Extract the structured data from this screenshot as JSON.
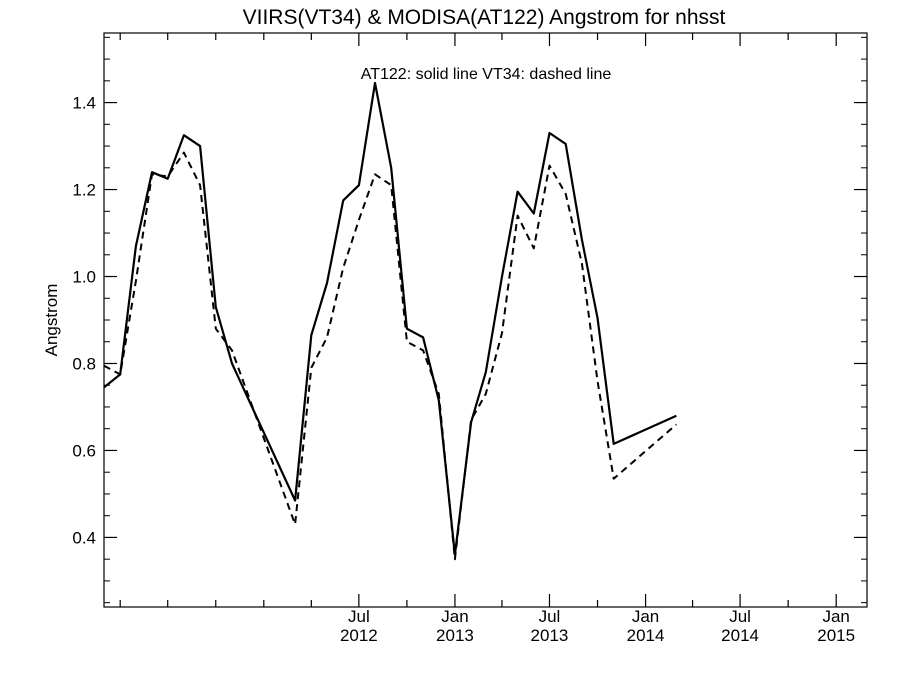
{
  "chart_data": {
    "type": "line",
    "title": "VIIRS(VT34) & MODISA(AT122)  Angstrom for nhsst",
    "ylabel": "Angstrom",
    "xlabel": "",
    "annotation": "AT122: solid line   VT34: dashed line",
    "ylim": [
      0.24,
      1.56
    ],
    "xlim": [
      "2011-03-01",
      "2015-03-01"
    ],
    "yticks": [
      {
        "value": 0.4,
        "label": "0.4"
      },
      {
        "value": 0.6,
        "label": "0.6"
      },
      {
        "value": 0.8,
        "label": "0.8"
      },
      {
        "value": 1.0,
        "label": "1.0"
      },
      {
        "value": 1.2,
        "label": "1.2"
      },
      {
        "value": 1.4,
        "label": "1.4"
      }
    ],
    "xticks": [
      {
        "date": "2012-07-01",
        "month": "Jul",
        "year": "2012"
      },
      {
        "date": "2013-01-01",
        "month": "Jan",
        "year": "2013"
      },
      {
        "date": "2013-07-01",
        "month": "Jul",
        "year": "2013"
      },
      {
        "date": "2014-01-01",
        "month": "Jan",
        "year": "2014"
      },
      {
        "date": "2014-07-01",
        "month": "Jul",
        "year": "2014"
      },
      {
        "date": "2015-01-01",
        "month": "Jan",
        "year": "2015"
      }
    ],
    "grid": false,
    "series": [
      {
        "name": "AT122",
        "style": "solid",
        "points": [
          [
            "2011-03-01",
            0.745
          ],
          [
            "2011-04-01",
            0.775
          ],
          [
            "2011-05-01",
            1.07
          ],
          [
            "2011-06-01",
            1.24
          ],
          [
            "2011-07-01",
            1.225
          ],
          [
            "2011-08-01",
            1.325
          ],
          [
            "2011-09-01",
            1.3
          ],
          [
            "2011-10-01",
            0.93
          ],
          [
            "2011-11-01",
            0.8
          ],
          [
            "2012-03-01",
            0.485
          ],
          [
            "2012-04-01",
            0.865
          ],
          [
            "2012-05-01",
            0.985
          ],
          [
            "2012-06-01",
            1.175
          ],
          [
            "2012-07-01",
            1.21
          ],
          [
            "2012-08-01",
            1.445
          ],
          [
            "2012-09-01",
            1.25
          ],
          [
            "2012-10-01",
            0.88
          ],
          [
            "2012-11-01",
            0.86
          ],
          [
            "2012-12-01",
            0.715
          ],
          [
            "2013-01-01",
            0.36
          ],
          [
            "2013-02-01",
            0.665
          ],
          [
            "2013-03-01",
            0.78
          ],
          [
            "2013-04-01",
            1.0
          ],
          [
            "2013-05-01",
            1.195
          ],
          [
            "2013-06-01",
            1.145
          ],
          [
            "2013-07-01",
            1.33
          ],
          [
            "2013-08-01",
            1.305
          ],
          [
            "2013-09-01",
            1.085
          ],
          [
            "2013-10-01",
            0.905
          ],
          [
            "2013-11-01",
            0.615
          ],
          [
            "2014-03-01",
            0.68
          ]
        ]
      },
      {
        "name": "VT34",
        "style": "dashed",
        "points": [
          [
            "2011-03-01",
            0.795
          ],
          [
            "2011-04-01",
            0.775
          ],
          [
            "2011-05-01",
            0.99
          ],
          [
            "2011-06-01",
            1.235
          ],
          [
            "2011-07-01",
            1.23
          ],
          [
            "2011-08-01",
            1.285
          ],
          [
            "2011-09-01",
            1.21
          ],
          [
            "2011-10-01",
            0.88
          ],
          [
            "2011-11-01",
            0.83
          ],
          [
            "2012-03-01",
            0.43
          ],
          [
            "2012-04-01",
            0.79
          ],
          [
            "2012-05-01",
            0.86
          ],
          [
            "2012-06-01",
            1.02
          ],
          [
            "2012-07-01",
            1.13
          ],
          [
            "2012-08-01",
            1.235
          ],
          [
            "2012-09-01",
            1.21
          ],
          [
            "2012-10-01",
            0.85
          ],
          [
            "2012-11-01",
            0.83
          ],
          [
            "2012-12-01",
            0.73
          ],
          [
            "2013-01-01",
            0.35
          ],
          [
            "2013-02-01",
            0.67
          ],
          [
            "2013-03-01",
            0.73
          ],
          [
            "2013-04-01",
            0.87
          ],
          [
            "2013-05-01",
            1.14
          ],
          [
            "2013-06-01",
            1.065
          ],
          [
            "2013-07-01",
            1.255
          ],
          [
            "2013-08-01",
            1.19
          ],
          [
            "2013-09-01",
            1.03
          ],
          [
            "2013-10-01",
            0.76
          ],
          [
            "2013-11-01",
            0.535
          ],
          [
            "2014-03-01",
            0.66
          ]
        ]
      }
    ]
  }
}
